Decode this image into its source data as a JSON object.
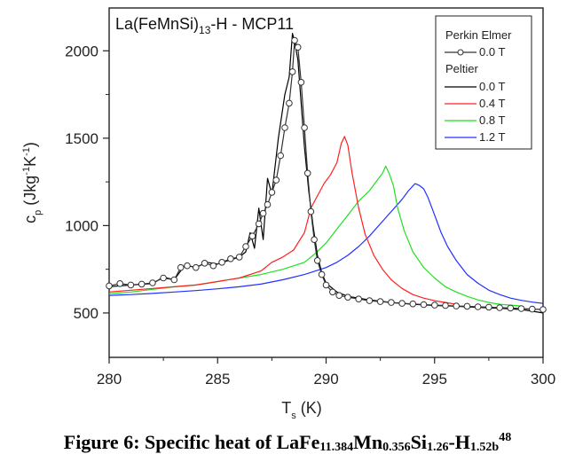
{
  "chart_data": {
    "type": "line",
    "title": "La(FeMnSi)",
    "title_sub": "13",
    "title_rest": "-H - MCP11",
    "xlabel": "T",
    "xlabel_sub": "s",
    "xlabel_unit": " (K)",
    "ylabel": "c",
    "ylabel_sub": "p",
    "ylabel_unit_parts": [
      " (Jkg",
      "-1",
      "K",
      "-1",
      ")"
    ],
    "xlim": [
      280,
      300
    ],
    "ylim": [
      246,
      2245
    ],
    "xticks": [
      "280",
      "285",
      "290",
      "295",
      "300"
    ],
    "xtick_values": [
      280,
      285,
      290,
      295,
      300
    ],
    "xminor": [
      282.5,
      287.5,
      292.5,
      297.5
    ],
    "yticks": [
      "500",
      "1000",
      "1500",
      "2000"
    ],
    "ytick_values": [
      500,
      1000,
      1500,
      2000
    ],
    "yminor": [
      750,
      1250,
      1750
    ],
    "grid": false,
    "legend_position": "top-right",
    "legend": {
      "group1_title": "Perkin Elmer",
      "group2_title": "Peltier",
      "entries": [
        {
          "label": "0.0 T",
          "group": "Perkin Elmer",
          "marker": "circle",
          "color": "#333333"
        },
        {
          "label": "0.0 T",
          "group": "Peltier",
          "color": "#000000"
        },
        {
          "label": "0.4 T",
          "group": "Peltier",
          "color": "#ff2020"
        },
        {
          "label": "0.8 T",
          "group": "Peltier",
          "color": "#20e020"
        },
        {
          "label": "1.2 T",
          "group": "Peltier",
          "color": "#2030ff"
        }
      ]
    },
    "series": [
      {
        "name": "Perkin Elmer 0.0 T",
        "color": "#333333",
        "marker": "circle",
        "x": [
          280.0,
          280.5,
          281.0,
          281.5,
          282.0,
          282.5,
          283.0,
          283.3,
          283.6,
          284.0,
          284.4,
          284.8,
          285.2,
          285.6,
          286.0,
          286.3,
          286.6,
          286.9,
          287.1,
          287.3,
          287.5,
          287.7,
          287.9,
          288.1,
          288.3,
          288.45,
          288.55,
          288.7,
          288.85,
          289.0,
          289.15,
          289.3,
          289.45,
          289.6,
          289.8,
          290.0,
          290.3,
          290.6,
          291.0,
          291.5,
          292.0,
          292.5,
          293.0,
          293.5,
          294.0,
          294.5,
          295.0,
          295.5,
          296.0,
          296.5,
          297.0,
          297.5,
          298.0,
          298.5,
          299.0,
          299.5,
          300.0
        ],
        "y": [
          655,
          668,
          660,
          665,
          672,
          700,
          690,
          760,
          770,
          760,
          785,
          770,
          790,
          810,
          820,
          880,
          940,
          1010,
          1070,
          1120,
          1190,
          1260,
          1400,
          1560,
          1700,
          1880,
          2060,
          2020,
          1820,
          1560,
          1300,
          1080,
          920,
          800,
          720,
          660,
          620,
          600,
          590,
          580,
          570,
          565,
          560,
          555,
          552,
          548,
          545,
          543,
          540,
          538,
          535,
          533,
          530,
          528,
          525,
          522,
          520
        ]
      },
      {
        "name": "Peltier 0.0 T",
        "color": "#000000",
        "x": [
          280.0,
          281.0,
          282.0,
          282.5,
          283.0,
          283.5,
          284.0,
          284.5,
          285.0,
          285.5,
          286.0,
          286.3,
          286.5,
          286.7,
          286.9,
          287.1,
          287.3,
          287.5,
          287.8,
          288.1,
          288.3,
          288.45,
          288.55,
          288.7,
          288.85,
          289.0,
          289.2,
          289.4,
          289.6,
          289.8,
          290.0,
          290.5,
          291.0,
          292.0,
          293.0,
          294.0,
          295.0,
          296.0,
          297.0,
          298.0,
          299.0,
          300.0
        ],
        "y": [
          650,
          660,
          668,
          705,
          690,
          775,
          760,
          790,
          780,
          800,
          820,
          850,
          960,
          870,
          1100,
          920,
          1270,
          1180,
          1500,
          1750,
          1850,
          2100,
          2050,
          1950,
          1700,
          1450,
          1200,
          1000,
          830,
          730,
          670,
          620,
          595,
          575,
          560,
          550,
          543,
          538,
          532,
          527,
          520,
          500
        ]
      },
      {
        "name": "Peltier 0.4 T",
        "color": "#ff2020",
        "x": [
          280.0,
          281.0,
          282.0,
          283.0,
          284.0,
          285.0,
          286.0,
          287.0,
          287.5,
          288.0,
          288.5,
          289.0,
          289.3,
          289.6,
          289.9,
          290.2,
          290.5,
          290.7,
          290.85,
          291.0,
          291.2,
          291.5,
          291.8,
          292.2,
          292.6,
          293.0,
          293.5,
          294.0,
          294.5,
          295.0,
          295.5,
          296.0
        ],
        "y": [
          620,
          630,
          640,
          650,
          660,
          680,
          700,
          740,
          790,
          820,
          860,
          960,
          1100,
          1170,
          1240,
          1290,
          1360,
          1470,
          1510,
          1460,
          1300,
          1100,
          950,
          830,
          750,
          690,
          640,
          605,
          585,
          570,
          560,
          550
        ]
      },
      {
        "name": "Peltier 0.8 T",
        "color": "#20e020",
        "x": [
          280.0,
          281.0,
          282.0,
          283.0,
          284.0,
          285.0,
          286.0,
          287.0,
          288.0,
          289.0,
          289.5,
          290.0,
          290.5,
          291.0,
          291.5,
          292.0,
          292.3,
          292.6,
          292.75,
          292.9,
          293.1,
          293.3,
          293.6,
          294.0,
          294.5,
          295.0,
          295.5,
          296.0,
          296.5,
          297.0,
          297.5,
          298.0,
          298.5,
          299.0
        ],
        "y": [
          610,
          620,
          635,
          650,
          660,
          680,
          700,
          720,
          750,
          790,
          840,
          900,
          980,
          1060,
          1140,
          1200,
          1250,
          1300,
          1340,
          1300,
          1230,
          1100,
          970,
          850,
          760,
          700,
          650,
          620,
          595,
          575,
          560,
          550,
          545,
          540
        ]
      },
      {
        "name": "Peltier 1.2 T",
        "color": "#2030ff",
        "x": [
          280.0,
          281.0,
          282.0,
          283.0,
          284.0,
          285.0,
          286.0,
          287.0,
          288.0,
          289.0,
          290.0,
          290.5,
          291.0,
          291.5,
          292.0,
          292.5,
          293.0,
          293.5,
          293.8,
          294.1,
          294.3,
          294.5,
          294.7,
          295.0,
          295.3,
          295.6,
          296.0,
          296.5,
          297.0,
          297.5,
          298.0,
          298.5,
          299.0,
          299.5,
          300.0
        ],
        "y": [
          600,
          605,
          612,
          620,
          628,
          638,
          650,
          665,
          690,
          720,
          760,
          790,
          830,
          880,
          940,
          1010,
          1080,
          1150,
          1200,
          1240,
          1230,
          1210,
          1160,
          1060,
          960,
          880,
          800,
          720,
          670,
          630,
          605,
          585,
          572,
          562,
          555
        ]
      }
    ]
  },
  "caption": {
    "prefix": "Figure 6: Specific heat of LaFe",
    "sub1": "11.384",
    "mn": "Mn",
    "sub2": "0.356",
    "si": "Si",
    "sub3": "1.26",
    "h": "-H",
    "sub4": "1.52b",
    "sup": "48"
  }
}
